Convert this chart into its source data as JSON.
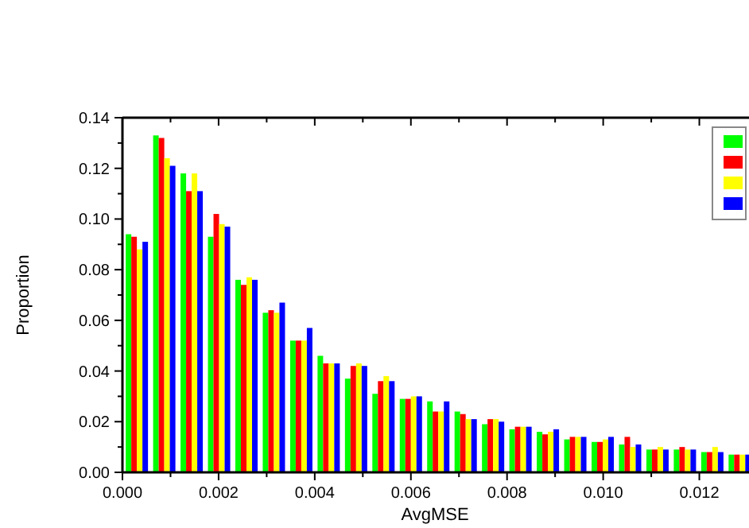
{
  "chart_data": {
    "type": "bar",
    "xlabel": "AvgMSE",
    "ylabel": "Proportion",
    "x": [
      0.0003,
      0.00087,
      0.00144,
      0.00201,
      0.00258,
      0.00315,
      0.00372,
      0.00429,
      0.00486,
      0.00543,
      0.006,
      0.00657,
      0.00714,
      0.00771,
      0.00828,
      0.00885,
      0.00942,
      0.00999,
      0.01056,
      0.01113,
      0.0117,
      0.01227,
      0.01284
    ],
    "series": [
      {
        "color": "#00ff00",
        "values": [
          0.094,
          0.133,
          0.118,
          0.093,
          0.076,
          0.063,
          0.052,
          0.046,
          0.037,
          0.031,
          0.029,
          0.028,
          0.024,
          0.019,
          0.017,
          0.016,
          0.013,
          0.012,
          0.011,
          0.009,
          0.009,
          0.008,
          0.007
        ]
      },
      {
        "color": "#ff0000",
        "values": [
          0.093,
          0.132,
          0.111,
          0.102,
          0.074,
          0.064,
          0.052,
          0.043,
          0.042,
          0.036,
          0.029,
          0.024,
          0.023,
          0.021,
          0.018,
          0.015,
          0.014,
          0.012,
          0.014,
          0.009,
          0.01,
          0.008,
          0.007
        ]
      },
      {
        "color": "#ffff00",
        "values": [
          0.088,
          0.124,
          0.118,
          0.098,
          0.077,
          0.063,
          0.052,
          0.043,
          0.043,
          0.038,
          0.03,
          0.024,
          0.021,
          0.021,
          0.018,
          0.016,
          0.014,
          0.013,
          0.01,
          0.01,
          0.009,
          0.01,
          0.007
        ]
      },
      {
        "color": "#0000ff",
        "values": [
          0.091,
          0.121,
          0.111,
          0.097,
          0.076,
          0.067,
          0.057,
          0.043,
          0.042,
          0.036,
          0.03,
          0.028,
          0.021,
          0.02,
          0.018,
          0.017,
          0.014,
          0.014,
          0.011,
          0.009,
          0.009,
          0.008,
          0.007
        ]
      }
    ],
    "xlim": [
      0,
      0.013
    ],
    "xticks": [
      {
        "value": 0,
        "label": "0.000"
      },
      {
        "value": 0.001,
        "label": null
      },
      {
        "value": 0.002,
        "label": "0.002"
      },
      {
        "value": 0.003,
        "label": null
      },
      {
        "value": 0.004,
        "label": "0.004"
      },
      {
        "value": 0.005,
        "label": null
      },
      {
        "value": 0.006,
        "label": "0.006"
      },
      {
        "value": 0.007,
        "label": null
      },
      {
        "value": 0.008,
        "label": "0.008"
      },
      {
        "value": 0.009,
        "label": null
      },
      {
        "value": 0.01,
        "label": "0.010"
      },
      {
        "value": 0.011,
        "label": null
      },
      {
        "value": 0.012,
        "label": "0.012"
      }
    ],
    "ylim": [
      0,
      0.14
    ],
    "yticks": [
      {
        "value": 0,
        "label": "0.00"
      },
      {
        "value": 0.01,
        "label": null
      },
      {
        "value": 0.02,
        "label": "0.02"
      },
      {
        "value": 0.03,
        "label": null
      },
      {
        "value": 0.04,
        "label": "0.04"
      },
      {
        "value": 0.05,
        "label": null
      },
      {
        "value": 0.06,
        "label": "0.06"
      },
      {
        "value": 0.07,
        "label": null
      },
      {
        "value": 0.08,
        "label": "0.08"
      },
      {
        "value": 0.09,
        "label": null
      },
      {
        "value": 0.1,
        "label": "0.10"
      },
      {
        "value": 0.11,
        "label": null
      },
      {
        "value": 0.12,
        "label": "0.12"
      },
      {
        "value": 0.13,
        "label": null
      },
      {
        "value": 0.14,
        "label": "0.14"
      }
    ]
  }
}
